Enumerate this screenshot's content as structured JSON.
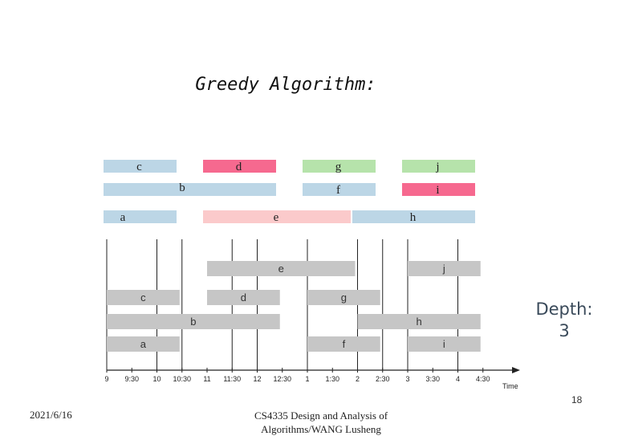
{
  "title": "Greedy Algorithm:",
  "depth": {
    "line1": "Depth:",
    "line2": "3"
  },
  "slide_number": "18",
  "footer": {
    "date": "2021/6/16",
    "course_line1": "CS4335 Design and Analysis of",
    "course_line2": "Algorithms/WANG Lusheng"
  },
  "colors": {
    "blue": "#bcd6e6",
    "pink": "#f6698f",
    "green": "#b6e3ab",
    "light_pink": "#fbcacb",
    "gray": "#c6c6c6"
  },
  "top_jobs": [
    {
      "label": "c",
      "start": 9.0,
      "end": 10.5,
      "color": "blue"
    },
    {
      "label": "d",
      "start": 11.0,
      "end": 12.5,
      "color": "pink"
    },
    {
      "label": "g",
      "start": 13.0,
      "end": 14.5,
      "color": "green"
    },
    {
      "label": "j",
      "start": 15.0,
      "end": 16.5,
      "color": "green"
    },
    {
      "label": "b",
      "start": 9.0,
      "end": 12.5,
      "color": "blue"
    },
    {
      "label": "f",
      "start": 13.0,
      "end": 14.5,
      "color": "blue"
    },
    {
      "label": "i",
      "start": 15.0,
      "end": 16.5,
      "color": "pink"
    },
    {
      "label": "a",
      "start": 9.0,
      "end": 10.5,
      "color": "blue"
    },
    {
      "label": "e",
      "start": 11.0,
      "end": 14.0,
      "color": "light_pink"
    },
    {
      "label": "h",
      "start": 14.0,
      "end": 16.5,
      "color": "blue"
    }
  ],
  "timeline": {
    "axis_label": "Time",
    "ticks": [
      "9",
      "9:30",
      "10",
      "10:30",
      "11",
      "11:30",
      "12",
      "12:30",
      "1",
      "1:30",
      "2",
      "2:30",
      "3",
      "3:30",
      "4",
      "4:30"
    ],
    "tick_values": [
      9,
      9.5,
      10,
      10.5,
      11,
      11.5,
      12,
      12.5,
      13,
      13.5,
      14,
      14.5,
      15,
      15.5,
      16,
      16.5
    ],
    "separator_times": [
      9,
      10,
      10.5,
      11.5,
      12,
      13,
      14,
      14.5,
      15,
      16
    ]
  },
  "bottom_jobs": [
    {
      "label": "e",
      "start": 11.0,
      "end": 14.0
    },
    {
      "label": "j",
      "start": 15.0,
      "end": 16.5
    },
    {
      "label": "c",
      "start": 9.0,
      "end": 10.5
    },
    {
      "label": "d",
      "start": 11.0,
      "end": 12.5
    },
    {
      "label": "g",
      "start": 13.0,
      "end": 14.5
    },
    {
      "label": "b",
      "start": 9.0,
      "end": 12.5
    },
    {
      "label": "h",
      "start": 14.0,
      "end": 16.5
    },
    {
      "label": "a",
      "start": 9.0,
      "end": 10.5
    },
    {
      "label": "f",
      "start": 13.0,
      "end": 14.5
    },
    {
      "label": "i",
      "start": 15.0,
      "end": 16.5
    }
  ]
}
